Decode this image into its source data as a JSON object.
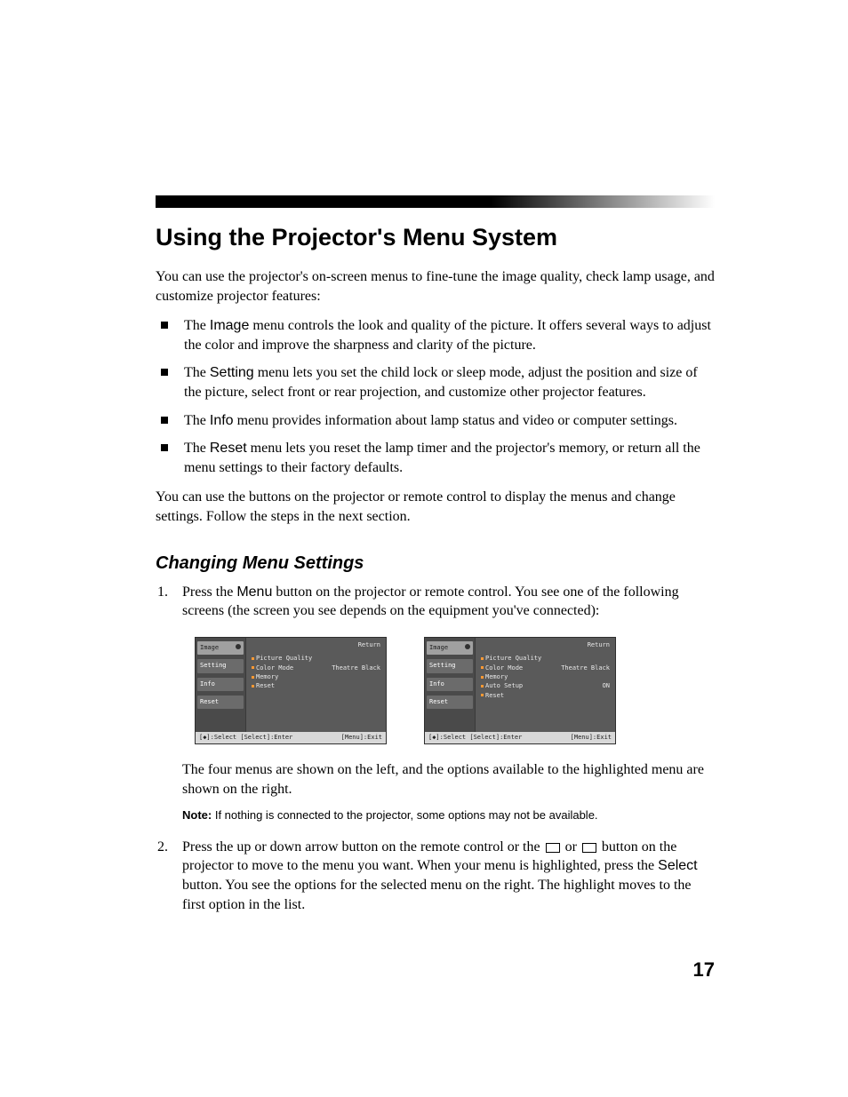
{
  "page": {
    "title": "Using the Projector's Menu System",
    "intro": "You can use the projector's on-screen menus to fine-tune the image quality, check lamp usage, and customize projector features:",
    "bullets": [
      {
        "label": "Image",
        "text_before": "The ",
        "text_after": " menu controls the look and quality of the picture. It offers several ways to adjust the color and improve the sharpness and clarity of the picture."
      },
      {
        "label": "Setting",
        "text_before": "The ",
        "text_after": " menu lets you set the child lock or sleep mode, adjust the position and size of the picture, select front or rear projection, and customize other projector features."
      },
      {
        "label": "Info",
        "text_before": "The ",
        "text_after": " menu provides information about lamp status and video or computer settings."
      },
      {
        "label": "Reset",
        "text_before": "The ",
        "text_after": " menu lets you reset the lamp timer and the projector's memory, or return all the menu settings to their factory defaults."
      }
    ],
    "outro": "You can use the buttons on the projector or remote control to display the menus and change settings. Follow the steps in the next section.",
    "subheading": "Changing Menu Settings",
    "step1_before": "Press the ",
    "step1_label": "Menu",
    "step1_after": " button on the projector or remote control. You see one of the following screens (the screen you see depends on the equipment you've connected):",
    "after_screens": "The four menus are shown on the left, and the options available to the highlighted menu are shown on the right.",
    "note_label": "Note:",
    "note_text": " If nothing is connected to the projector, some options may not be available.",
    "step2_a": "Press the up or down arrow button on the remote control or the ",
    "step2_b": " or ",
    "step2_c": " button on the projector to move to the menu you want. When your menu is highlighted, press the ",
    "step2_label": "Select",
    "step2_d": " button. You see the options for the selected menu on the right. The highlight moves to the first option in the list.",
    "page_number": "17"
  },
  "osd": {
    "tabs": [
      "Image",
      "Setting",
      "Info",
      "Reset"
    ],
    "return": "Return",
    "footer_left": "[◆]:Select [Select]:Enter",
    "footer_right": "[Menu]:Exit",
    "screen1": {
      "rows": [
        {
          "label": "Picture Quality",
          "value": ""
        },
        {
          "label": "Color Mode",
          "value": "Theatre Black"
        },
        {
          "label": "Memory",
          "value": ""
        },
        {
          "label": "Reset",
          "value": ""
        }
      ]
    },
    "screen2": {
      "rows": [
        {
          "label": "Picture Quality",
          "value": ""
        },
        {
          "label": "Color Mode",
          "value": "Theatre Black"
        },
        {
          "label": "Memory",
          "value": ""
        },
        {
          "label": "Auto Setup",
          "value": "ON"
        },
        {
          "label": "Reset",
          "value": ""
        }
      ]
    }
  },
  "colors": {
    "osd_bg": "#4a4a4a",
    "osd_panel": "#5a5a5a",
    "osd_tab": "#6b6b6b",
    "osd_tab_active": "#a0a0a0",
    "osd_footer_bg": "#d8d8d8",
    "osd_accent": "#ff9933"
  }
}
